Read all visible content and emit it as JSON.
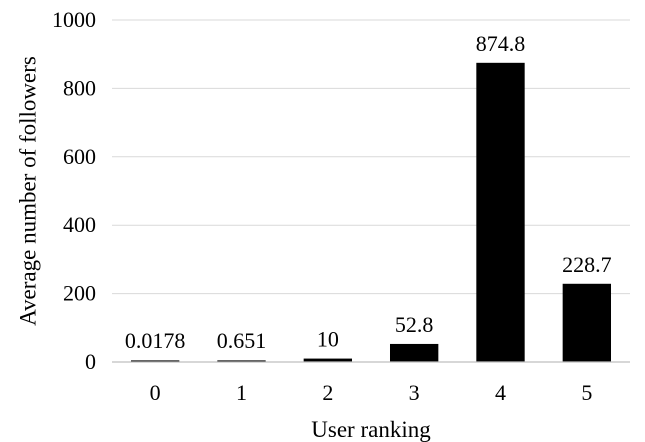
{
  "chart_data": {
    "type": "bar",
    "categories": [
      "0",
      "1",
      "2",
      "3",
      "4",
      "5"
    ],
    "values": [
      0.0178,
      0.651,
      10,
      52.8,
      874.8,
      228.7
    ],
    "data_labels": [
      "0.0178",
      "0.651",
      "10",
      "52.8",
      "874.8",
      "228.7"
    ],
    "title": "",
    "xlabel": "User ranking",
    "ylabel": "Average number of followers",
    "ylim": [
      0,
      1000
    ],
    "yticks": [
      "0",
      "200",
      "400",
      "600",
      "800",
      "1000"
    ],
    "grid": true,
    "legend": "none",
    "bar_color": "#000000",
    "grid_color": "#d9d9d9"
  }
}
